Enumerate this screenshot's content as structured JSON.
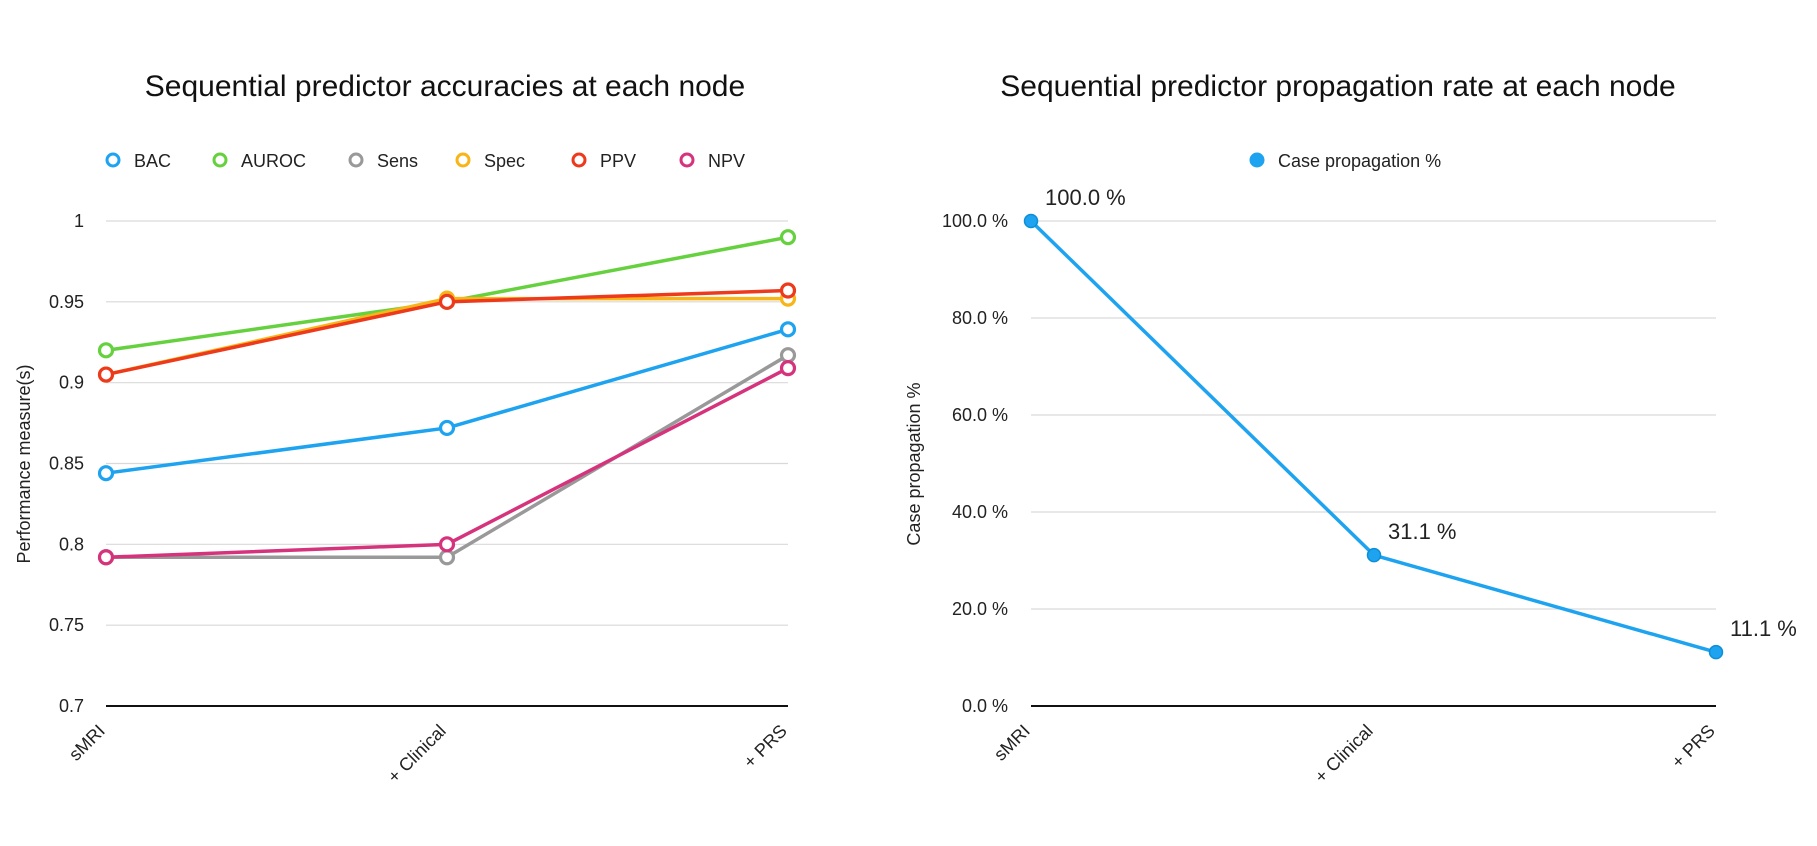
{
  "chart_data": [
    {
      "type": "line",
      "title": "Sequential predictor accuracies at each node",
      "xlabel": "",
      "ylabel": "Performance measure(s)",
      "categories": [
        "sMRI",
        "+ Clinical",
        "+ PRS"
      ],
      "ylim": [
        0.7,
        1.0
      ],
      "yticks": [
        "0.7",
        "0.75",
        "0.8",
        "0.85",
        "0.9",
        "0.95",
        "1"
      ],
      "grid": true,
      "legend": "top",
      "series": [
        {
          "name": "BAC",
          "color": "#1ea3f0",
          "values": [
            0.844,
            0.872,
            0.933
          ]
        },
        {
          "name": "AUROC",
          "color": "#66d13e",
          "values": [
            0.92,
            0.95,
            0.99
          ]
        },
        {
          "name": "Sens",
          "color": "#999999",
          "values": [
            0.792,
            0.792,
            0.917
          ]
        },
        {
          "name": "Spec",
          "color": "#f7b517",
          "values": [
            0.905,
            0.952,
            0.952
          ]
        },
        {
          "name": "PPV",
          "color": "#ee3a1c",
          "values": [
            0.905,
            0.95,
            0.957
          ]
        },
        {
          "name": "NPV",
          "color": "#d6337d",
          "values": [
            0.792,
            0.8,
            0.909
          ]
        }
      ]
    },
    {
      "type": "line",
      "title": "Sequential predictor propagation rate at each node",
      "xlabel": "",
      "ylabel": "Case propagation %",
      "categories": [
        "sMRI",
        "+ Clinical",
        "+ PRS"
      ],
      "ylim": [
        0,
        100
      ],
      "yticks": [
        "0.0 %",
        "20.0 %",
        "40.0 %",
        "60.0 %",
        "80.0 %",
        "100.0 %"
      ],
      "grid": true,
      "legend": "top",
      "series": [
        {
          "name": "Case propagation %",
          "color": "#1ea3f0",
          "values": [
            100.0,
            31.1,
            11.1
          ],
          "labels": [
            "100.0 %",
            "31.1 %",
            "11.1 %"
          ]
        }
      ]
    }
  ]
}
